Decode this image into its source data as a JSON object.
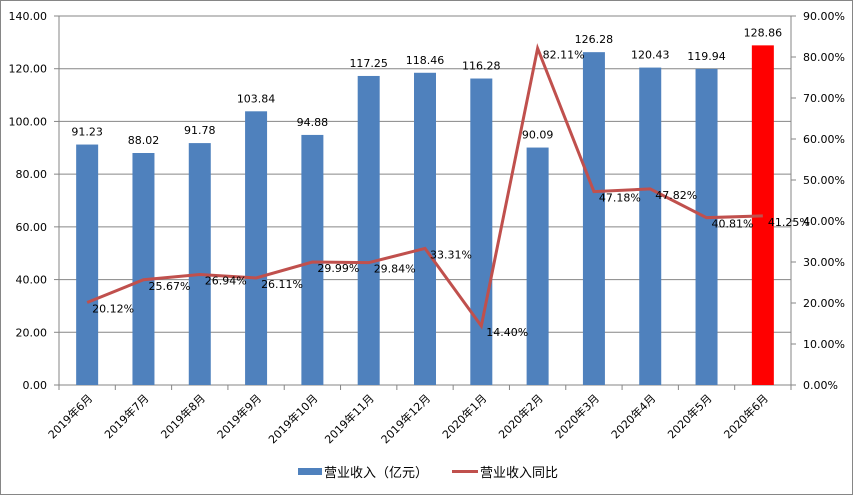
{
  "chart_data": {
    "type": "bar+line",
    "title": "",
    "categories": [
      "2019年6月",
      "2019年7月",
      "2019年8月",
      "2019年9月",
      "2019年10月",
      "2019年11月",
      "2019年12月",
      "2020年1月",
      "2020年2月",
      "2020年3月",
      "2020年4月",
      "2020年5月",
      "2020年6月"
    ],
    "series": [
      {
        "name": "营业收入（亿元）",
        "type": "bar",
        "axis": "left",
        "color": "#4f81bd",
        "highlight_color": "#ff0000",
        "highlight_index": 12,
        "values": [
          91.23,
          88.02,
          91.78,
          103.84,
          94.88,
          117.25,
          118.46,
          116.28,
          90.09,
          126.28,
          120.43,
          119.94,
          128.86
        ],
        "labels": [
          "91.23",
          "88.02",
          "91.78",
          "103.84",
          "94.88",
          "117.25",
          "118.46",
          "116.28",
          "90.09",
          "126.28",
          "120.43",
          "119.94",
          "128.86"
        ]
      },
      {
        "name": "营业收入同比",
        "type": "line",
        "axis": "right",
        "color": "#c0504d",
        "values": [
          20.12,
          25.67,
          26.94,
          26.11,
          29.99,
          29.84,
          33.31,
          14.4,
          82.11,
          47.18,
          47.82,
          40.81,
          41.25
        ],
        "labels": [
          "20.12%",
          "25.67%",
          "26.94%",
          "26.11%",
          "29.99%",
          "29.84%",
          "33.31%",
          "14.40%",
          "82.11%",
          "47.18%",
          "47.82%",
          "40.81%",
          "41.25%"
        ]
      }
    ],
    "y_left": {
      "min": 0,
      "max": 140,
      "step": 20,
      "ticks": [
        "0.00",
        "20.00",
        "40.00",
        "60.00",
        "80.00",
        "100.00",
        "120.00",
        "140.00"
      ]
    },
    "y_right": {
      "min": 0,
      "max": 90,
      "step": 10,
      "ticks": [
        "0.00%",
        "10.00%",
        "20.00%",
        "30.00%",
        "40.00%",
        "50.00%",
        "60.00%",
        "70.00%",
        "80.00%",
        "90.00%"
      ]
    },
    "xlabel": "",
    "ylabel": "",
    "grid": true,
    "legend_position": "bottom"
  },
  "legend": {
    "bar_label": "营业收入（亿元）",
    "line_label": "营业收入同比"
  }
}
